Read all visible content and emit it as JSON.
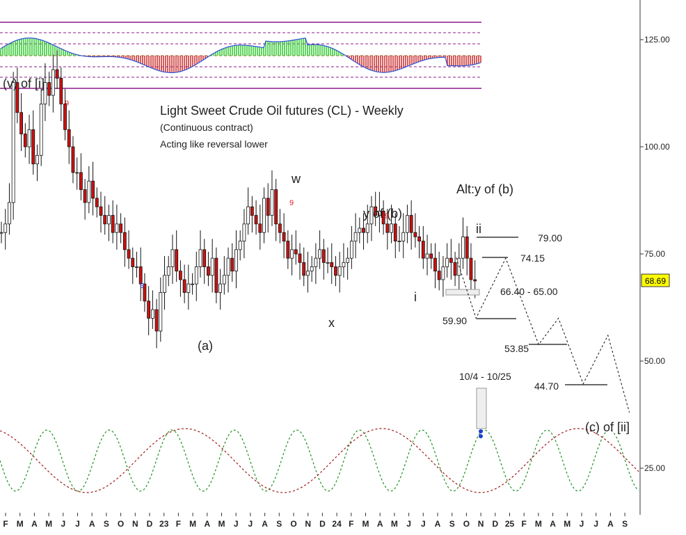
{
  "chart_data": {
    "type": "candlestick",
    "title": "Light Sweet Crude Oil futures (CL) - Weekly",
    "subtitle": "(Continuous contract)",
    "note": "Acting like reversal lower",
    "y_axis": {
      "ticks": [
        "125.00",
        "100.00",
        "75.00",
        "50.00",
        "25.00"
      ],
      "range": [
        18,
        135
      ]
    },
    "last_price": "68.69",
    "x_axis": {
      "ticks": [
        "F",
        "M",
        "A",
        "M",
        "J",
        "J",
        "A",
        "S",
        "O",
        "N",
        "D",
        "23",
        "F",
        "M",
        "A",
        "M",
        "J",
        "J",
        "A",
        "S",
        "O",
        "N",
        "D",
        "24",
        "F",
        "M",
        "A",
        "M",
        "J",
        "J",
        "A",
        "S",
        "O",
        "N",
        "D",
        "25",
        "F",
        "M",
        "A",
        "M",
        "J",
        "J",
        "A",
        "S"
      ],
      "range": [
        "2022-01",
        "2025-09"
      ]
    },
    "price_series_weekly_close": [
      80,
      82,
      87,
      115,
      108,
      103,
      100,
      104,
      96,
      98,
      110,
      115,
      112,
      118,
      116,
      110,
      104,
      100,
      94,
      94,
      90,
      87,
      92,
      88,
      86,
      84,
      82,
      84,
      80,
      82,
      80,
      76,
      74,
      72,
      72,
      68,
      64,
      60,
      62,
      57,
      66,
      70,
      72,
      76,
      71,
      69,
      66,
      68,
      68,
      72,
      76,
      72,
      70,
      74,
      66,
      68,
      70,
      74,
      71,
      76,
      78,
      82,
      86,
      84,
      82,
      80,
      88,
      84,
      90,
      82,
      80,
      78,
      74,
      76,
      75,
      73,
      70,
      71,
      72,
      74,
      76,
      73,
      73,
      72,
      70,
      72,
      73,
      74,
      78,
      80,
      81,
      80,
      82,
      86,
      84,
      85,
      82,
      80,
      82,
      78,
      78,
      80,
      84,
      80,
      79,
      78,
      74,
      75,
      74,
      71,
      69,
      72,
      74,
      73,
      70,
      74,
      79,
      74,
      69,
      68.69
    ],
    "elliott_labels": [
      "(v) of [i]",
      "(a)",
      "w",
      "x",
      "y of (b)",
      "i",
      "ii",
      "Alt:y of (b)",
      "(c) of [ii]"
    ],
    "sequential_counts": [
      "9",
      "9",
      "9",
      "9"
    ],
    "price_levels": [
      "79.00",
      "74.15",
      "66.40 - 65.00",
      "59.90",
      "53.85",
      "44.70"
    ],
    "cycle_window": "10/4 - 10/25",
    "projection_path": [
      [
        2024.75,
        74.15
      ],
      [
        2024.87,
        60
      ],
      [
        2025.05,
        74
      ],
      [
        2025.25,
        53.85
      ],
      [
        2025.37,
        60
      ],
      [
        2025.52,
        44.7
      ],
      [
        2025.67,
        56
      ],
      [
        2025.8,
        38
      ]
    ]
  }
}
